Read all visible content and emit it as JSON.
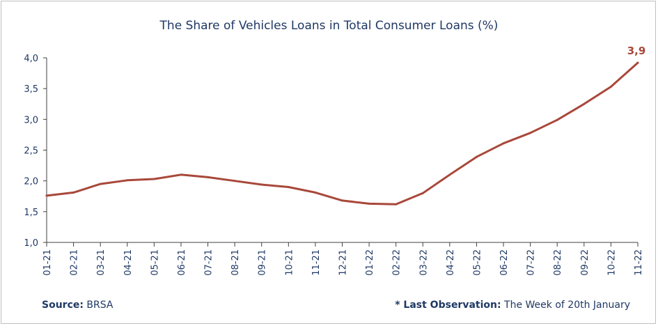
{
  "chart_data": {
    "type": "line",
    "title": "The Share of Vehicles Loans in Total Consumer Loans (%)",
    "xlabel": "",
    "ylabel": "",
    "categories": [
      "01-21",
      "02-21",
      "03-21",
      "04-21",
      "05-21",
      "06-21",
      "07-21",
      "08-21",
      "09-21",
      "10-21",
      "11-21",
      "12-21",
      "01-22",
      "02-22",
      "03-22",
      "04-22",
      "05-22",
      "06-22",
      "07-22",
      "08-22",
      "09-22",
      "10-22",
      "11-22"
    ],
    "series": [
      {
        "values": [
          1.76,
          1.81,
          1.95,
          2.01,
          2.03,
          2.1,
          2.06,
          2.0,
          1.94,
          1.9,
          1.81,
          1.68,
          1.63,
          1.62,
          1.8,
          2.1,
          2.39,
          2.61,
          2.78,
          2.99,
          3.25,
          3.53,
          3.92
        ],
        "color": "#a8483a"
      }
    ],
    "ylim": [
      1.0,
      4.0
    ],
    "yticks": [
      "1,0",
      "1,5",
      "2,0",
      "2,5",
      "3,0",
      "3,5",
      "4,0"
    ],
    "yticks_values": [
      1.0,
      1.5,
      2.0,
      2.5,
      3.0,
      3.5,
      4.0
    ],
    "last_value_label": "3,9",
    "grid": false,
    "legend": "none"
  },
  "footer": {
    "source_label": "Source:",
    "source_value": "BRSA",
    "note_label": "* Last Observation:",
    "note_value": "The Week of 20th January"
  },
  "colors": {
    "line": "#a8483a",
    "text": "#1f3864",
    "axis": "#404040"
  }
}
